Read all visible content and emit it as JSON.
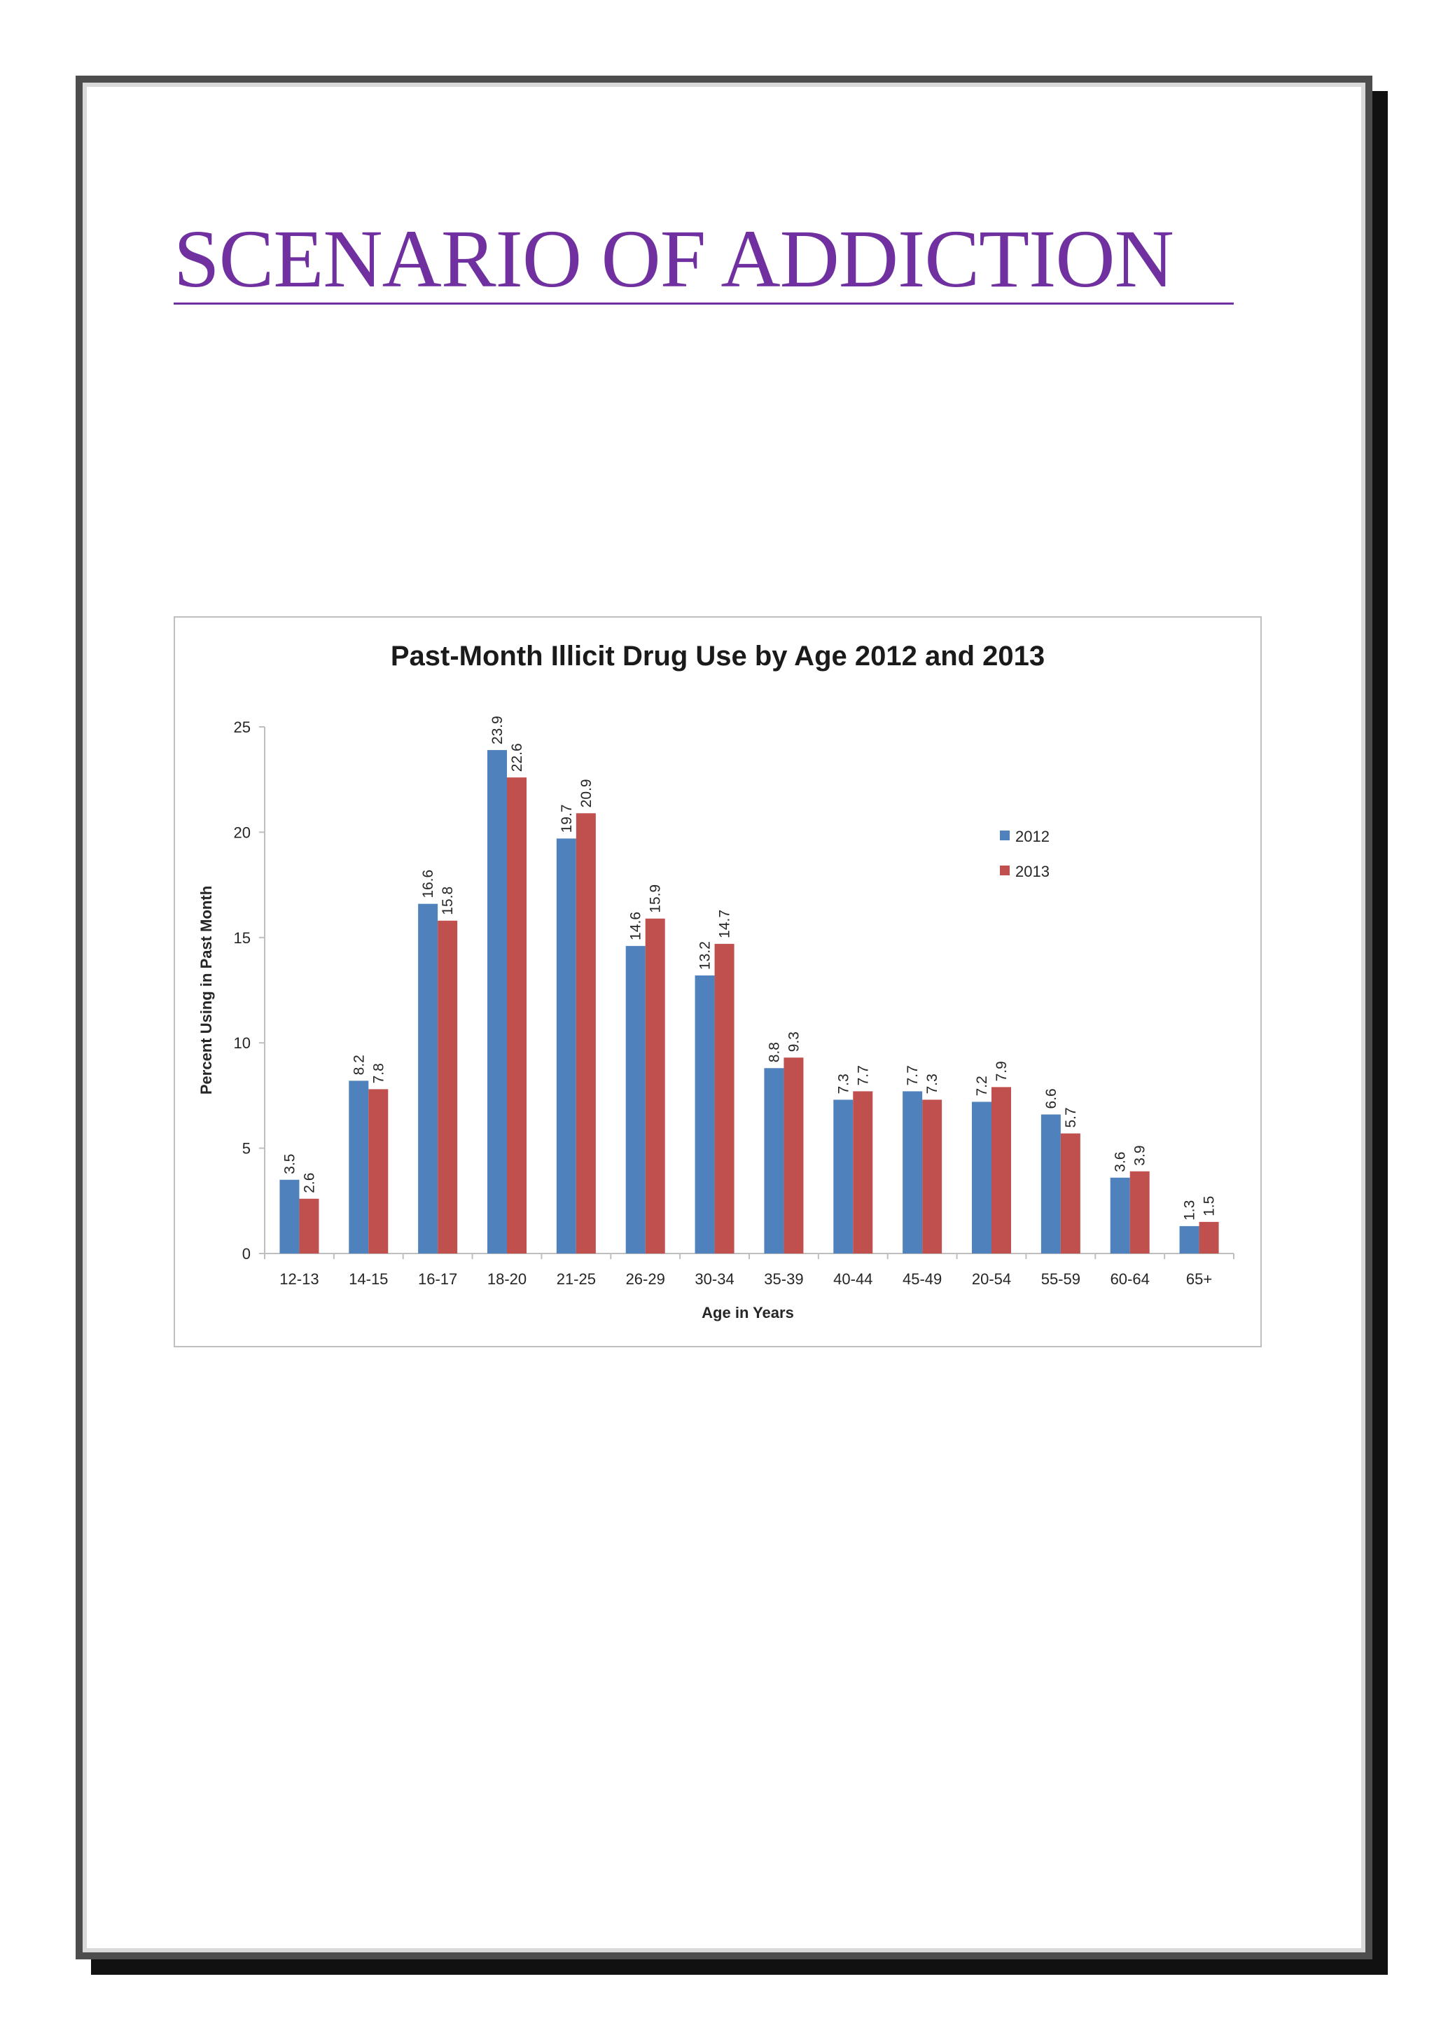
{
  "page": {
    "title": "SCENARIO OF ADDICTION"
  },
  "colors": {
    "title": "#7030a0",
    "series_2012": "#4f81bd",
    "series_2013": "#c0504d"
  },
  "chart_data": {
    "type": "bar",
    "title": "Past-Month Illicit Drug Use by Age 2012 and 2013",
    "xlabel": "Age in Years",
    "ylabel": "Percent Using in Past Month",
    "ylim": [
      0,
      25
    ],
    "yticks": [
      0,
      5,
      10,
      15,
      20,
      25
    ],
    "grid": false,
    "legend_position": "upper-right",
    "categories": [
      "12-13",
      "14-15",
      "16-17",
      "18-20",
      "21-25",
      "26-29",
      "30-34",
      "35-39",
      "40-44",
      "45-49",
      "20-54",
      "55-59",
      "60-64",
      "65+"
    ],
    "series": [
      {
        "name": "2012",
        "values": [
          3.5,
          8.2,
          16.6,
          23.9,
          19.7,
          14.6,
          13.2,
          8.8,
          7.3,
          7.7,
          7.2,
          6.6,
          3.6,
          1.3
        ]
      },
      {
        "name": "2013",
        "values": [
          2.6,
          7.8,
          15.8,
          22.6,
          20.9,
          15.9,
          14.7,
          9.3,
          7.7,
          7.3,
          7.9,
          5.7,
          3.9,
          1.5
        ]
      }
    ]
  }
}
